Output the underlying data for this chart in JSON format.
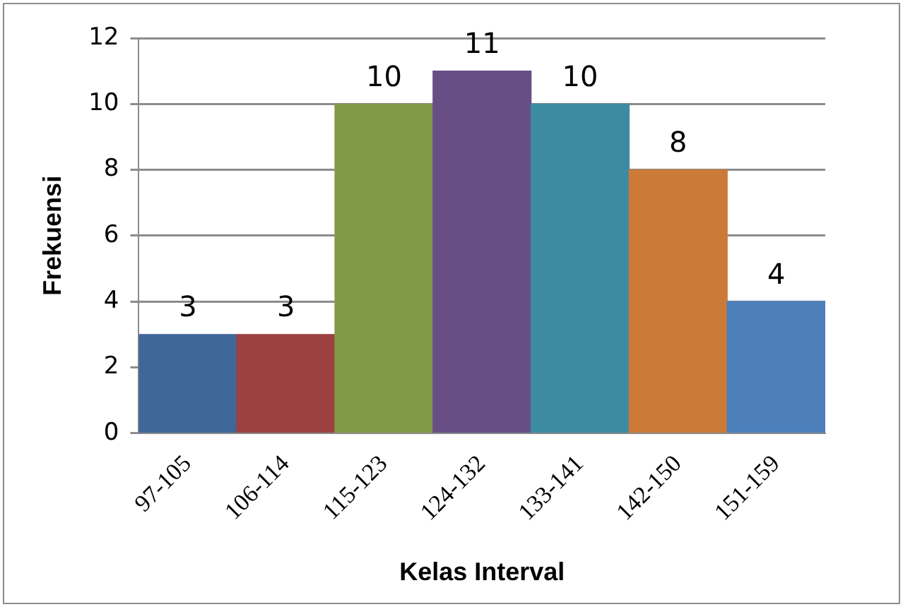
{
  "chart_data": {
    "type": "bar",
    "xlabel": "Kelas Interval",
    "ylabel": "Frekuensi",
    "categories": [
      "97-105",
      "106-114",
      "115-123",
      "124-132",
      "133-141",
      "142-150",
      "151-159"
    ],
    "values": [
      3,
      3,
      10,
      11,
      10,
      8,
      4
    ],
    "colors": [
      "#3f6797",
      "#9c4040",
      "#809a48",
      "#674f86",
      "#3c8ba2",
      "#cb7a38",
      "#4d7fbb"
    ],
    "ylim": [
      0,
      12
    ],
    "yticks": [
      0,
      2,
      4,
      6,
      8,
      10,
      12
    ],
    "grid": "y",
    "data_labels": true,
    "legend": false
  }
}
